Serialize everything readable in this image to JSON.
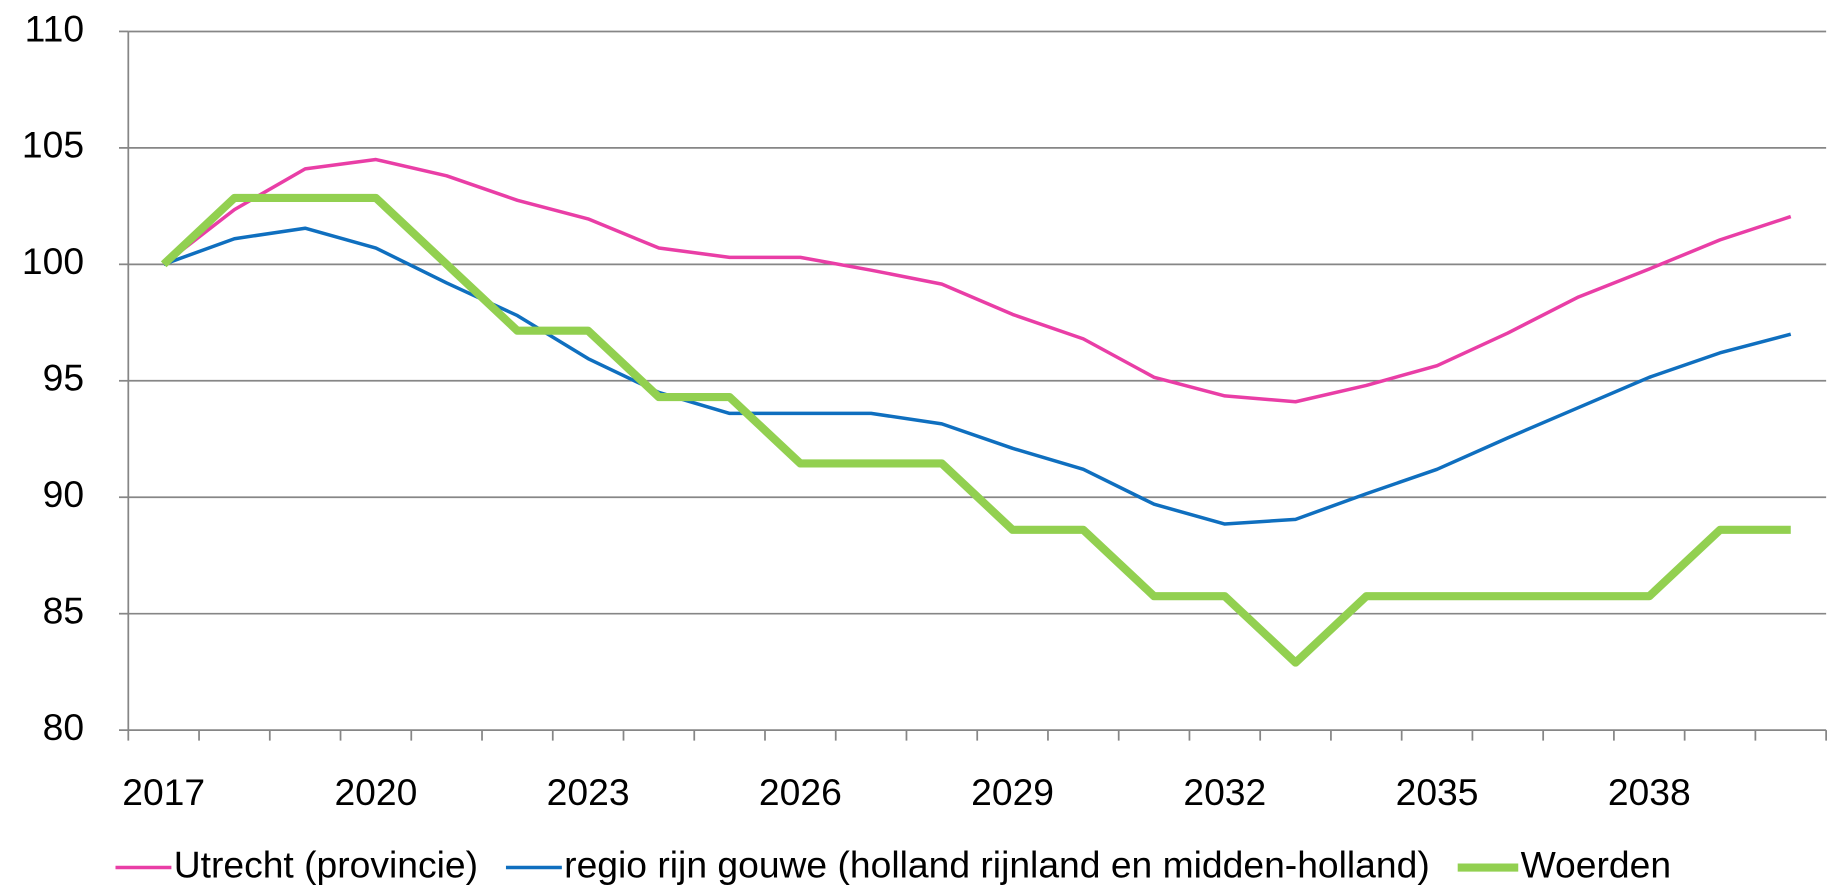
{
  "chart_data": {
    "type": "line",
    "categories": [
      "2017",
      null,
      null,
      "2020",
      null,
      null,
      "2023",
      null,
      null,
      "2026",
      null,
      null,
      "2029",
      null,
      null,
      "2032",
      null,
      null,
      "2035",
      null,
      null,
      "2038",
      null,
      null
    ],
    "series": [
      {
        "name": "Utrecht (provincie)",
        "color": "#e93ea6",
        "width": 3,
        "values": [
          100,
          102.35,
          104.1,
          104.5,
          103.8,
          102.75,
          101.95,
          100.7,
          100.3,
          100.3,
          99.75,
          99.15,
          97.85,
          96.8,
          95.15,
          94.35,
          94.1,
          94.8,
          95.65,
          97.05,
          98.6,
          99.8,
          101.05,
          102.05
        ]
      },
      {
        "name": "regio rijn gouwe (holland rijnland en midden-holland)",
        "color": "#0f6fbf",
        "width": 3,
        "values": [
          100,
          101.1,
          101.55,
          100.7,
          99.2,
          97.8,
          95.95,
          94.5,
          93.6,
          93.6,
          93.6,
          93.15,
          92.1,
          91.2,
          89.7,
          88.85,
          89.05,
          90.15,
          91.2,
          92.55,
          93.85,
          95.15,
          96.2,
          97
        ]
      },
      {
        "name": "Woerden",
        "color": "#92d050",
        "width": 7,
        "values": [
          100,
          102.85,
          102.85,
          102.85,
          100,
          97.15,
          97.15,
          94.3,
          94.3,
          91.45,
          91.45,
          91.45,
          88.6,
          88.6,
          85.75,
          85.75,
          82.9,
          85.75,
          85.75,
          85.75,
          85.75,
          85.75,
          88.6,
          88.6
        ]
      }
    ],
    "ylim": [
      80,
      110
    ],
    "yticks": [
      80,
      85,
      90,
      95,
      100,
      105,
      110
    ],
    "grid": true,
    "legend": "bottom"
  }
}
